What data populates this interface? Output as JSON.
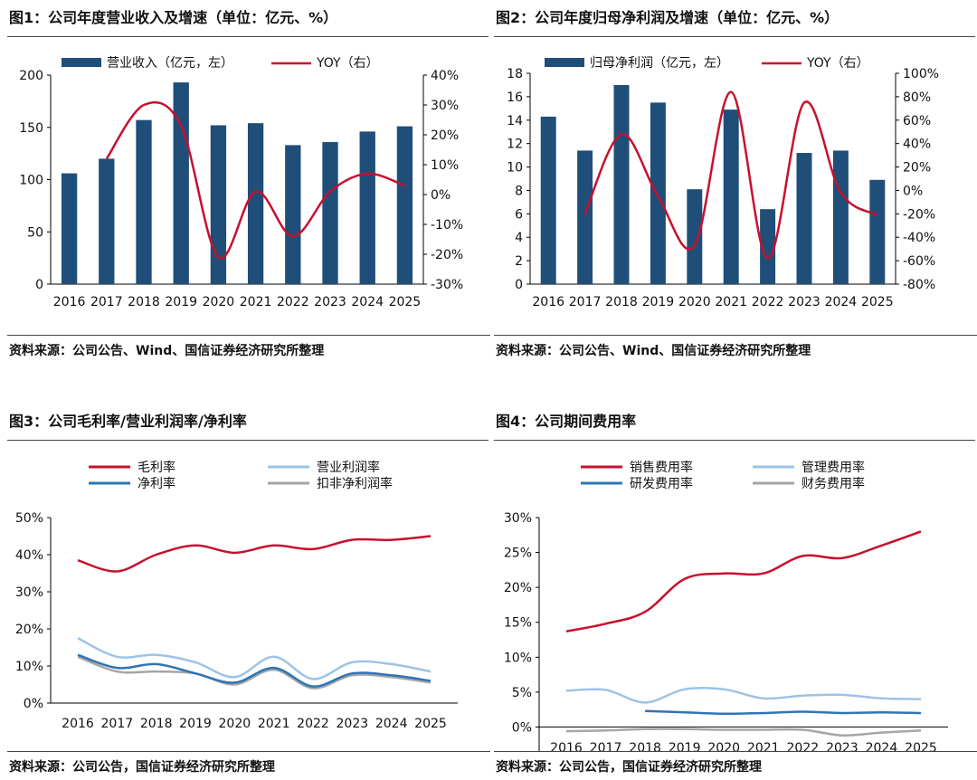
{
  "chart_data": [
    {
      "id": "fig1",
      "type": "bar",
      "title": "图1：公司年度营业收入及增速（单位：亿元、%）",
      "source": "资料来源：公司公告、Wind、国信证券经济研究所整理",
      "categories": [
        "2016",
        "2017",
        "2018",
        "2019",
        "2020",
        "2021",
        "2022",
        "2023",
        "2024",
        "2025"
      ],
      "left_axis": {
        "ticks": [
          "0",
          "50",
          "100",
          "150",
          "200"
        ],
        "ylim": [
          0,
          200
        ]
      },
      "right_axis": {
        "ticks": [
          "-30%",
          "-20%",
          "-10%",
          "0%",
          "10%",
          "20%",
          "30%",
          "40%"
        ],
        "ylim": [
          -30,
          40
        ]
      },
      "series": [
        {
          "name": "营业收入（亿元，左）",
          "kind": "bar",
          "axis": "left",
          "color": "#1f4e79",
          "values": [
            106,
            120,
            157,
            193,
            152,
            154,
            133,
            136,
            146,
            151
          ]
        },
        {
          "name": "YOY（右）",
          "kind": "line",
          "axis": "right",
          "color": "#c8102e",
          "values": [
            null,
            12,
            30,
            23,
            -21,
            1,
            -14,
            1,
            7,
            3
          ]
        }
      ]
    },
    {
      "id": "fig2",
      "type": "bar",
      "title": "图2：公司年度归母净利润及增速（单位：亿元、%）",
      "source": "资料来源：公司公告、Wind、国信证券经济研究所整理",
      "categories": [
        "2016",
        "2017",
        "2018",
        "2019",
        "2020",
        "2021",
        "2022",
        "2023",
        "2024",
        "2025"
      ],
      "left_axis": {
        "ticks": [
          "0",
          "2",
          "4",
          "6",
          "8",
          "10",
          "12",
          "14",
          "16",
          "18"
        ],
        "ylim": [
          0,
          18
        ]
      },
      "right_axis": {
        "ticks": [
          "-80%",
          "-60%",
          "-40%",
          "-20%",
          "0%",
          "20%",
          "40%",
          "60%",
          "80%",
          "100%"
        ],
        "ylim": [
          -80,
          100
        ]
      },
      "series": [
        {
          "name": "归母净利润（亿元，左）",
          "kind": "bar",
          "axis": "left",
          "color": "#1f4e79",
          "values": [
            14.3,
            11.4,
            17.0,
            15.5,
            8.1,
            14.9,
            6.4,
            11.2,
            11.4,
            8.9
          ]
        },
        {
          "name": "YOY（右）",
          "kind": "line",
          "axis": "right",
          "color": "#c8102e",
          "values": [
            null,
            -20,
            48,
            -5,
            -47,
            84,
            -58,
            75,
            -2,
            -21
          ]
        }
      ]
    },
    {
      "id": "fig3",
      "type": "line",
      "title": "图3：公司毛利率/营业利润率/净利率",
      "source": "资料来源：公司公告，国信证券经济研究所整理",
      "categories": [
        "2016",
        "2017",
        "2018",
        "2019",
        "2020",
        "2021",
        "2022",
        "2023",
        "2024",
        "2025"
      ],
      "left_axis": {
        "ticks": [
          "0%",
          "10%",
          "20%",
          "30%",
          "40%",
          "50%"
        ],
        "ylim": [
          0,
          50
        ]
      },
      "series": [
        {
          "name": "毛利率",
          "color": "#c8102e",
          "values": [
            38.5,
            35.5,
            40,
            42.5,
            40.5,
            42.5,
            41.5,
            44,
            44,
            45
          ]
        },
        {
          "name": "营业利润率",
          "color": "#9dc3e6",
          "values": [
            17.5,
            12.5,
            13,
            11,
            7,
            12.5,
            6.5,
            11,
            10.5,
            8.5
          ]
        },
        {
          "name": "净利率",
          "color": "#2e75b6",
          "values": [
            13,
            9.5,
            10.5,
            8,
            5.5,
            9.5,
            4.5,
            8,
            7.5,
            6
          ]
        },
        {
          "name": "扣非净利润率",
          "color": "#a6a6a6",
          "values": [
            12.5,
            8.5,
            8.5,
            8,
            5,
            9,
            4,
            7.5,
            7,
            5.5
          ]
        }
      ]
    },
    {
      "id": "fig4",
      "type": "line",
      "title": "图4：公司期间费用率",
      "source": "资料来源：公司公告，国信证券经济研究所整理",
      "categories": [
        "2016",
        "2017",
        "2018",
        "2019",
        "2020",
        "2021",
        "2022",
        "2023",
        "2024",
        "2025"
      ],
      "left_axis": {
        "ticks": [
          "-5%",
          "0%",
          "5%",
          "10%",
          "15%",
          "20%",
          "25%",
          "30%"
        ],
        "ylim": [
          -5,
          30
        ]
      },
      "series": [
        {
          "name": "销售费用率",
          "color": "#c8102e",
          "values": [
            13.7,
            14.8,
            16.5,
            21.2,
            22,
            22,
            24.5,
            24.2,
            26,
            28
          ]
        },
        {
          "name": "管理费用率",
          "color": "#9dc3e6",
          "values": [
            5.2,
            5.3,
            3.5,
            5.4,
            5.4,
            4.1,
            4.5,
            4.6,
            4.1,
            4
          ]
        },
        {
          "name": "研发费用率",
          "color": "#2e75b6",
          "values": [
            null,
            null,
            2.3,
            2.1,
            1.9,
            2,
            2.2,
            2,
            2.1,
            2
          ]
        },
        {
          "name": "财务费用率",
          "color": "#a6a6a6",
          "values": [
            -0.6,
            -0.5,
            -0.3,
            -0.3,
            -0.4,
            -0.4,
            -0.4,
            -1.2,
            -0.8,
            -0.5
          ]
        }
      ]
    }
  ]
}
